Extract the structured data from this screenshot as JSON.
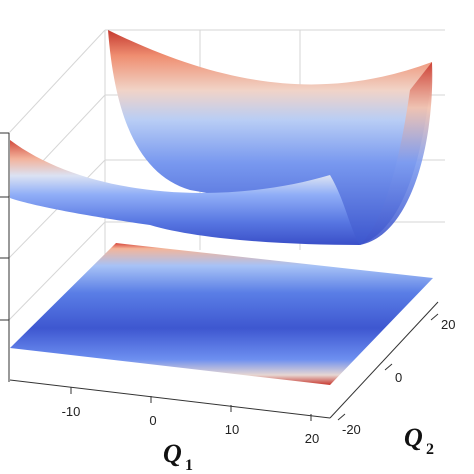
{
  "chart_data": {
    "type": "surface3d",
    "description_of_series": [
      {
        "role": "surface",
        "shape": "parabolic trough along Q1, flat along Q2"
      },
      {
        "role": "projection",
        "shape": "contour map on floor plane"
      }
    ],
    "x_axis": {
      "label_main": "Q",
      "label_sub": "1",
      "ticks": [
        "-10",
        "0",
        "10",
        "20"
      ],
      "range": [
        -20,
        20
      ]
    },
    "y_axis": {
      "label_main": "Q",
      "label_sub": "2",
      "ticks": [
        "-20",
        "0",
        "20"
      ],
      "range": [
        -20,
        20
      ]
    },
    "colormap": [
      "#3b4cc0",
      "#8db0fe",
      "#dddddd",
      "#f49a7b",
      "#b40426"
    ],
    "grid": true
  }
}
